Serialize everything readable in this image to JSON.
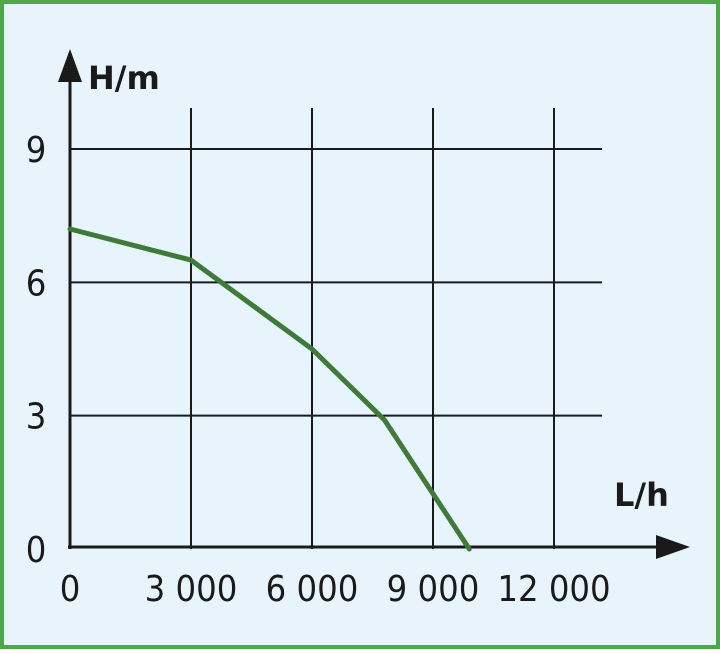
{
  "chart_data": {
    "type": "line",
    "xlabel": "L/h",
    "ylabel": "H/m",
    "x_ticks": [
      0,
      3000,
      6000,
      9000,
      12000
    ],
    "x_tick_labels": [
      "0",
      "3 000",
      "6 000",
      "9 000",
      "12 000"
    ],
    "y_ticks": [
      0,
      3,
      6,
      9
    ],
    "y_tick_labels": [
      "0",
      "3",
      "6",
      "9"
    ],
    "xlim": [
      0,
      12000
    ],
    "ylim": [
      0,
      9
    ],
    "grid": true,
    "series": [
      {
        "x": [
          0,
          3000,
          6000,
          7800,
          9900
        ],
        "y": [
          7.2,
          6.5,
          4.5,
          2.9,
          0
        ]
      }
    ],
    "colors": {
      "line": "#3f7a3a",
      "border": "#4ea84a",
      "background": "#e8f4fc",
      "axis": "#1a1a1a"
    }
  }
}
